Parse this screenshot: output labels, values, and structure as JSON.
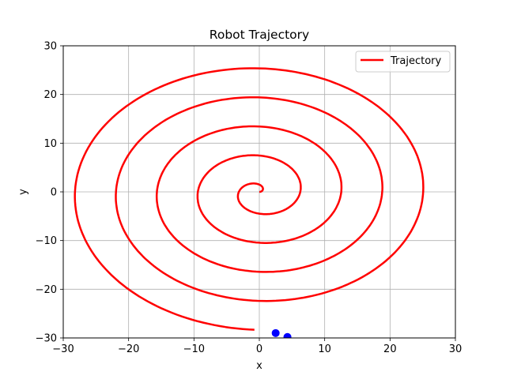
{
  "chart_data": {
    "type": "line",
    "title": "Robot Trajectory",
    "xlabel": "x",
    "ylabel": "y",
    "xlim": [
      -30,
      30
    ],
    "ylim": [
      -30,
      30
    ],
    "xticks": [
      -30,
      -20,
      -10,
      0,
      10,
      20,
      30
    ],
    "yticks": [
      -30,
      -20,
      -10,
      0,
      10,
      20,
      30
    ],
    "xtick_labels": [
      "−30",
      "−20",
      "−10",
      "0",
      "10",
      "20",
      "30"
    ],
    "ytick_labels": [
      "−30",
      "−20",
      "−10",
      "0",
      "10",
      "20",
      "30"
    ],
    "grid": true,
    "legend_position": "top-right",
    "series": [
      {
        "name": "Trajectory",
        "color": "#ff0000",
        "shape": "archimedean spiral, counter-clockwise",
        "x": [
          0.4,
          1.0,
          1.8,
          2.5,
          3.2,
          4.0,
          4.8,
          5.6,
          6.2
        ],
        "y": [
          0.4,
          1.2,
          1.2,
          0.4,
          -0.8,
          -2.2,
          -3.8,
          -5.5,
          -7.4
        ]
      },
      {
        "name": "",
        "color": "#0000ff",
        "type": "scatter",
        "x": [
          2.5,
          4.3
        ],
        "y": [
          -29.0,
          -29.8
        ]
      }
    ]
  }
}
